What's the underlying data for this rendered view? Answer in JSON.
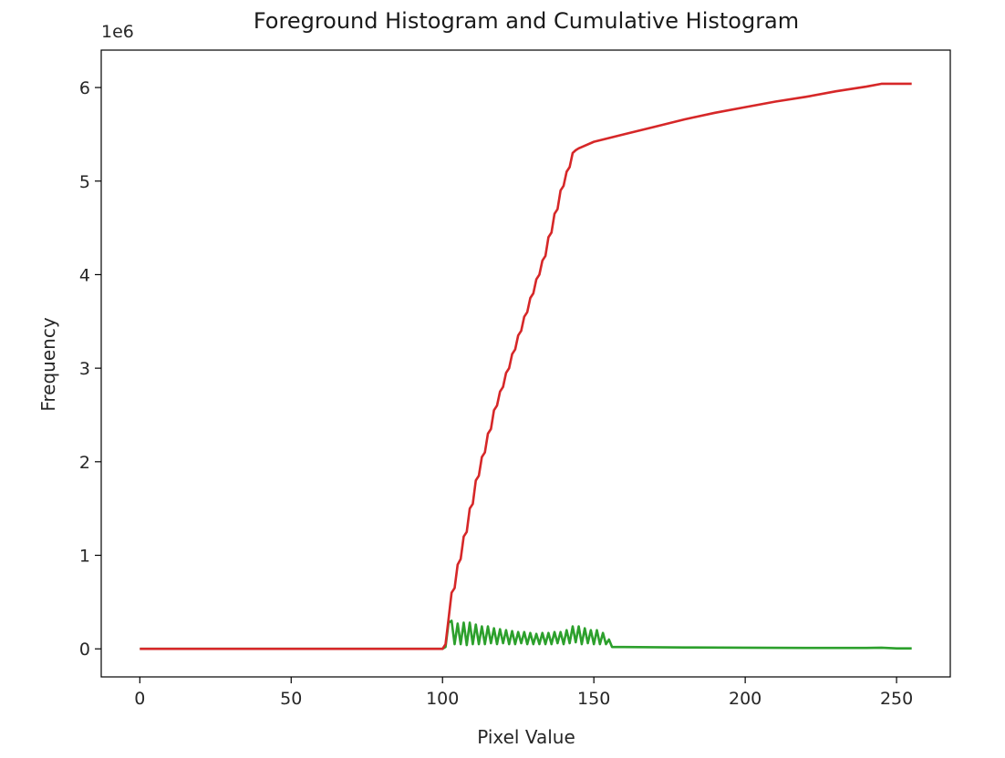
{
  "chart_data": {
    "type": "line",
    "title": "Foreground Histogram and Cumulative Histogram",
    "xlabel": "Pixel Value",
    "ylabel": "Frequency",
    "y_offset_text": "1e6",
    "xlim": [
      -12.75,
      267.75
    ],
    "ylim": [
      -0.3,
      6.4
    ],
    "xticks": [
      0,
      50,
      100,
      150,
      200,
      250
    ],
    "yticks": [
      0,
      1,
      2,
      3,
      4,
      5,
      6
    ],
    "grid": false,
    "legend": "none",
    "series": [
      {
        "color": "#2ca02c",
        "points": [
          [
            0,
            0
          ],
          [
            50,
            0
          ],
          [
            100,
            0
          ],
          [
            101,
            0.02
          ],
          [
            102,
            0.28
          ],
          [
            103,
            0.3
          ],
          [
            104,
            0.05
          ],
          [
            105,
            0.27
          ],
          [
            106,
            0.05
          ],
          [
            107,
            0.28
          ],
          [
            108,
            0.04
          ],
          [
            109,
            0.28
          ],
          [
            110,
            0.05
          ],
          [
            111,
            0.26
          ],
          [
            112,
            0.05
          ],
          [
            113,
            0.24
          ],
          [
            114,
            0.05
          ],
          [
            115,
            0.24
          ],
          [
            116,
            0.06
          ],
          [
            117,
            0.22
          ],
          [
            118,
            0.05
          ],
          [
            119,
            0.21
          ],
          [
            120,
            0.06
          ],
          [
            121,
            0.2
          ],
          [
            122,
            0.05
          ],
          [
            123,
            0.19
          ],
          [
            124,
            0.05
          ],
          [
            125,
            0.18
          ],
          [
            126,
            0.06
          ],
          [
            127,
            0.18
          ],
          [
            128,
            0.05
          ],
          [
            129,
            0.17
          ],
          [
            130,
            0.05
          ],
          [
            131,
            0.16
          ],
          [
            132,
            0.05
          ],
          [
            133,
            0.17
          ],
          [
            134,
            0.05
          ],
          [
            135,
            0.17
          ],
          [
            136,
            0.05
          ],
          [
            137,
            0.18
          ],
          [
            138,
            0.06
          ],
          [
            139,
            0.18
          ],
          [
            140,
            0.05
          ],
          [
            141,
            0.2
          ],
          [
            142,
            0.06
          ],
          [
            143,
            0.24
          ],
          [
            144,
            0.07
          ],
          [
            145,
            0.24
          ],
          [
            146,
            0.05
          ],
          [
            147,
            0.22
          ],
          [
            148,
            0.06
          ],
          [
            149,
            0.2
          ],
          [
            150,
            0.05
          ],
          [
            151,
            0.2
          ],
          [
            152,
            0.05
          ],
          [
            153,
            0.17
          ],
          [
            154,
            0.05
          ],
          [
            155,
            0.1
          ],
          [
            156,
            0.02
          ],
          [
            160,
            0.02
          ],
          [
            180,
            0.015
          ],
          [
            200,
            0.012
          ],
          [
            220,
            0.01
          ],
          [
            240,
            0.01
          ],
          [
            245,
            0.012
          ],
          [
            250,
            0.005
          ],
          [
            255,
            0.005
          ]
        ]
      },
      {
        "color": "#d62728",
        "points": [
          [
            0,
            0
          ],
          [
            50,
            0
          ],
          [
            100,
            0
          ],
          [
            101,
            0.05
          ],
          [
            102,
            0.32
          ],
          [
            103,
            0.6
          ],
          [
            104,
            0.65
          ],
          [
            105,
            0.9
          ],
          [
            106,
            0.96
          ],
          [
            107,
            1.2
          ],
          [
            108,
            1.25
          ],
          [
            109,
            1.5
          ],
          [
            110,
            1.55
          ],
          [
            111,
            1.8
          ],
          [
            112,
            1.85
          ],
          [
            113,
            2.05
          ],
          [
            114,
            2.1
          ],
          [
            115,
            2.3
          ],
          [
            116,
            2.35
          ],
          [
            117,
            2.55
          ],
          [
            118,
            2.6
          ],
          [
            119,
            2.75
          ],
          [
            120,
            2.8
          ],
          [
            121,
            2.95
          ],
          [
            122,
            3.0
          ],
          [
            123,
            3.15
          ],
          [
            124,
            3.2
          ],
          [
            125,
            3.35
          ],
          [
            126,
            3.4
          ],
          [
            127,
            3.55
          ],
          [
            128,
            3.6
          ],
          [
            129,
            3.75
          ],
          [
            130,
            3.8
          ],
          [
            131,
            3.95
          ],
          [
            132,
            4.0
          ],
          [
            133,
            4.15
          ],
          [
            134,
            4.2
          ],
          [
            135,
            4.4
          ],
          [
            136,
            4.45
          ],
          [
            137,
            4.65
          ],
          [
            138,
            4.7
          ],
          [
            139,
            4.9
          ],
          [
            140,
            4.95
          ],
          [
            141,
            5.1
          ],
          [
            142,
            5.15
          ],
          [
            143,
            5.3
          ],
          [
            144,
            5.33
          ],
          [
            145,
            5.35
          ],
          [
            150,
            5.42
          ],
          [
            160,
            5.5
          ],
          [
            170,
            5.58
          ],
          [
            180,
            5.66
          ],
          [
            190,
            5.73
          ],
          [
            200,
            5.79
          ],
          [
            210,
            5.85
          ],
          [
            220,
            5.9
          ],
          [
            230,
            5.96
          ],
          [
            240,
            6.01
          ],
          [
            245,
            6.04
          ],
          [
            250,
            6.04
          ],
          [
            255,
            6.04
          ]
        ]
      }
    ]
  }
}
